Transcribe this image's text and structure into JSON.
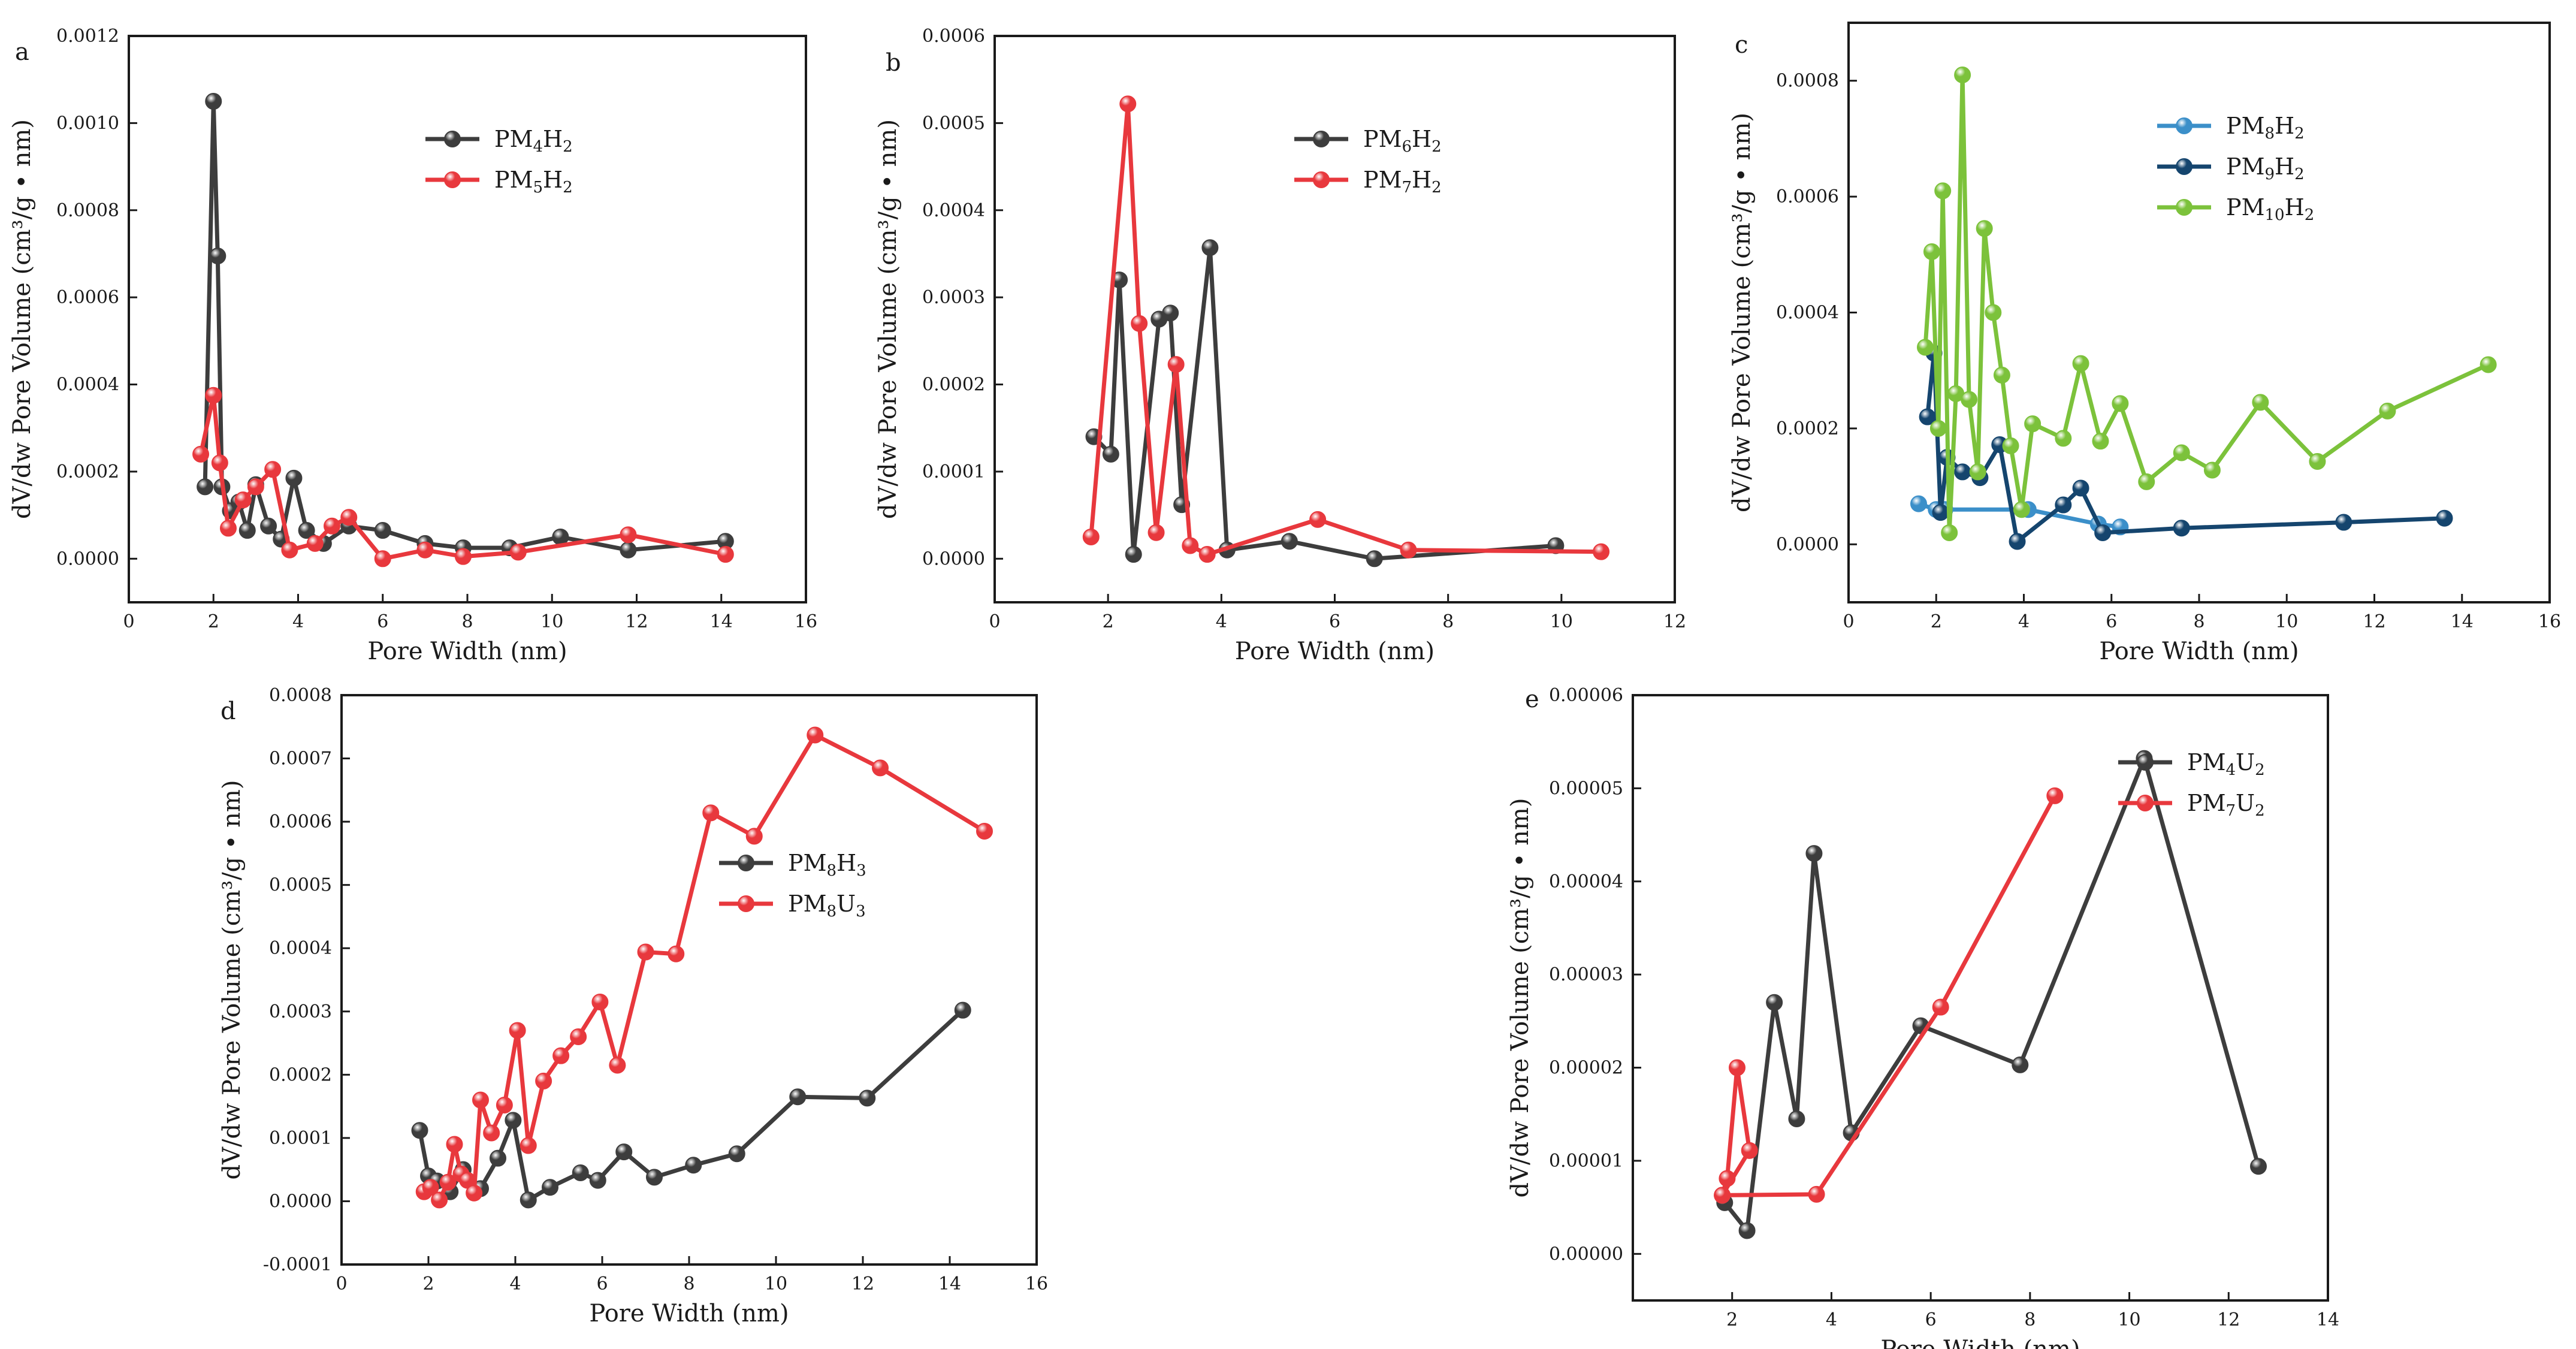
{
  "figure": {
    "colors": {
      "black": "#3d3d3d",
      "red": "#e8383d",
      "lightblue": "#3b8fc9",
      "navy": "#15456e",
      "green": "#7cc23b"
    }
  },
  "chart_data": [
    {
      "type": "line",
      "panel": "a",
      "xlabel": "Pore Width (nm)",
      "ylabel": "dV/dw Pore Volume (cm³/g • nm)",
      "xlim": [
        0,
        16
      ],
      "ylim": [
        -0.0001,
        0.0012
      ],
      "xticks": [
        0,
        2,
        4,
        6,
        8,
        10,
        12,
        14,
        16
      ],
      "xtick_labels": [
        "0",
        "2",
        "4",
        "6",
        "8",
        "10",
        "12",
        "14",
        "16"
      ],
      "yticks": [
        0,
        0.0002,
        0.0004,
        0.0006,
        0.0008,
        0.001,
        0.0012
      ],
      "ytick_labels": [
        "0.0000",
        "0.0002",
        "0.0004",
        "0.0006",
        "0.0008",
        "0.0010",
        "0.0012"
      ],
      "legend_position": "top-right",
      "series": [
        {
          "name": "PM4H2",
          "label": "PM",
          "sub1": "4",
          "mid": "H",
          "sub2": "2",
          "color": "#3d3d3d",
          "x": [
            1.8,
            2.0,
            2.1,
            2.2,
            2.4,
            2.6,
            2.8,
            3.0,
            3.3,
            3.6,
            3.9,
            4.2,
            4.6,
            5.2,
            6.0,
            7.0,
            7.9,
            9.0,
            10.2,
            11.8,
            14.1
          ],
          "y": [
            0.000165,
            0.00105,
            0.000695,
            0.000165,
            0.00011,
            0.00013,
            6.5e-05,
            0.00017,
            7.5e-05,
            4.5e-05,
            0.000185,
            6.5e-05,
            3.5e-05,
            7.5e-05,
            6.5e-05,
            3.5e-05,
            2.5e-05,
            2.5e-05,
            5e-05,
            2e-05,
            4e-05
          ]
        },
        {
          "name": "PM5H2",
          "label": "PM",
          "sub1": "5",
          "mid": "H",
          "sub2": "2",
          "color": "#e8383d",
          "x": [
            1.7,
            2.0,
            2.15,
            2.35,
            2.7,
            3.0,
            3.4,
            3.8,
            4.4,
            4.8,
            5.2,
            6.0,
            7.0,
            7.9,
            9.2,
            11.8,
            14.1
          ],
          "y": [
            0.00024,
            0.000375,
            0.00022,
            7e-05,
            0.000135,
            0.000165,
            0.000205,
            2e-05,
            3.5e-05,
            7.5e-05,
            9.5e-05,
            0.0,
            2e-05,
            5e-06,
            1.5e-05,
            5.5e-05,
            1e-05
          ]
        }
      ]
    },
    {
      "type": "line",
      "panel": "b",
      "xlabel": "Pore Width (nm)",
      "ylabel": "dV/dw Pore Volume (cm³/g • nm)",
      "xlim": [
        0,
        12
      ],
      "ylim": [
        -5e-05,
        0.0006
      ],
      "xticks": [
        0,
        2,
        4,
        6,
        8,
        10,
        12
      ],
      "xtick_labels": [
        "0",
        "2",
        "4",
        "6",
        "8",
        "10",
        "12"
      ],
      "yticks": [
        0,
        0.0001,
        0.0002,
        0.0003,
        0.0004,
        0.0005,
        0.0006
      ],
      "ytick_labels": [
        "0.0000",
        "0.0001",
        "0.0002",
        "0.0003",
        "0.0004",
        "0.0005",
        "0.0006"
      ],
      "legend_position": "top-right",
      "series": [
        {
          "name": "PM6H2",
          "label": "PM",
          "sub1": "6",
          "mid": "H",
          "sub2": "2",
          "color": "#3d3d3d",
          "x": [
            1.75,
            2.05,
            2.2,
            2.45,
            2.9,
            3.1,
            3.3,
            3.8,
            4.1,
            5.2,
            6.7,
            9.9
          ],
          "y": [
            0.00014,
            0.00012,
            0.00032,
            5e-06,
            0.000275,
            0.000282,
            6.2e-05,
            0.000357,
            1e-05,
            2e-05,
            0.0,
            1.5e-05
          ]
        },
        {
          "name": "PM7H2",
          "label": "PM",
          "sub1": "7",
          "mid": "H",
          "sub2": "2",
          "color": "#e8383d",
          "x": [
            1.7,
            2.35,
            2.55,
            2.85,
            3.2,
            3.45,
            3.75,
            5.7,
            7.3,
            10.7
          ],
          "y": [
            2.5e-05,
            0.000522,
            0.00027,
            3e-05,
            0.000223,
            1.5e-05,
            5e-06,
            4.5e-05,
            1e-05,
            8e-06
          ]
        }
      ]
    },
    {
      "type": "line",
      "panel": "c",
      "xlabel": "Pore Width (nm)",
      "ylabel": "dV/dw Pore Volume (cm³/g • nm)",
      "xlim": [
        0,
        16
      ],
      "ylim": [
        -0.0001,
        0.0009
      ],
      "xticks": [
        0,
        2,
        4,
        6,
        8,
        10,
        12,
        14,
        16
      ],
      "xtick_labels": [
        "0",
        "2",
        "4",
        "6",
        "8",
        "10",
        "12",
        "14",
        "16"
      ],
      "yticks": [
        0,
        0.0002,
        0.0004,
        0.0006,
        0.0008
      ],
      "ytick_labels": [
        "0.0000",
        "0.0002",
        "0.0004",
        "0.0006",
        "0.0008"
      ],
      "legend_position": "top-right",
      "series": [
        {
          "name": "PM8H2",
          "label": "PM",
          "sub1": "8",
          "mid": "H",
          "sub2": "2",
          "color": "#3b8fc9",
          "x": [
            1.6,
            2.0,
            2.2,
            4.1,
            5.7,
            6.2
          ],
          "y": [
            7e-05,
            6e-05,
            6e-05,
            6e-05,
            3.5e-05,
            3e-05
          ]
        },
        {
          "name": "PM9H2",
          "label": "PM",
          "sub1": "9",
          "mid": "H",
          "sub2": "2",
          "color": "#15456e",
          "x": [
            1.8,
            1.95,
            2.1,
            2.25,
            2.6,
            3.0,
            3.45,
            3.85,
            4.9,
            5.3,
            5.8,
            7.6,
            11.3,
            13.6
          ],
          "y": [
            0.00022,
            0.00033,
            5.5e-05,
            0.00015,
            0.000125,
            0.000115,
            0.000172,
            5e-06,
            6.8e-05,
            9.7e-05,
            2e-05,
            2.8e-05,
            3.8e-05,
            4.5e-05
          ]
        },
        {
          "name": "PM10H2",
          "label": "PM",
          "sub1": "10",
          "mid": "H",
          "sub2": "2",
          "color": "#7cc23b",
          "x": [
            1.75,
            1.9,
            2.05,
            2.15,
            2.3,
            2.45,
            2.6,
            2.75,
            2.95,
            3.1,
            3.3,
            3.5,
            3.7,
            3.95,
            4.2,
            4.9,
            5.3,
            5.75,
            6.2,
            6.8,
            7.6,
            8.3,
            9.4,
            10.7,
            12.3,
            14.6
          ],
          "y": [
            0.00034,
            0.000505,
            0.0002,
            0.00061,
            2e-05,
            0.00026,
            0.00081,
            0.00025,
            0.000125,
            0.000545,
            0.0004,
            0.000292,
            0.00017,
            6e-05,
            0.000208,
            0.000183,
            0.000312,
            0.000178,
            0.000243,
            0.000108,
            0.000158,
            0.000128,
            0.000245,
            0.000143,
            0.00023,
            0.00031
          ]
        }
      ]
    },
    {
      "type": "line",
      "panel": "d",
      "xlabel": "Pore Width (nm)",
      "ylabel": "dV/dw Pore Volume (cm³/g • nm)",
      "xlim": [
        0,
        16
      ],
      "ylim": [
        -0.0001,
        0.0008
      ],
      "xticks": [
        0,
        2,
        4,
        6,
        8,
        10,
        12,
        14,
        16
      ],
      "xtick_labels": [
        "0",
        "2",
        "4",
        "6",
        "8",
        "10",
        "12",
        "14",
        "16"
      ],
      "yticks": [
        -0.0001,
        0,
        0.0001,
        0.0002,
        0.0003,
        0.0004,
        0.0005,
        0.0006,
        0.0007,
        0.0008
      ],
      "ytick_labels": [
        "-0.0001",
        "0.0000",
        "0.0001",
        "0.0002",
        "0.0003",
        "0.0004",
        "0.0005",
        "0.0006",
        "0.0007",
        "0.0008"
      ],
      "legend_position": "center-right",
      "series": [
        {
          "name": "PM8H3",
          "label": "PM",
          "sub1": "8",
          "mid": "H",
          "sub2": "3",
          "color": "#3d3d3d",
          "x": [
            1.8,
            2.0,
            2.2,
            2.5,
            2.8,
            3.2,
            3.6,
            3.95,
            4.3,
            4.8,
            5.5,
            5.9,
            6.5,
            7.2,
            8.1,
            9.1,
            10.5,
            12.1,
            14.3
          ],
          "y": [
            0.000112,
            4e-05,
            3.2e-05,
            1.5e-05,
            5e-05,
            2e-05,
            6.8e-05,
            0.000128,
            2e-06,
            2.2e-05,
            4.5e-05,
            3.3e-05,
            7.8e-05,
            3.8e-05,
            5.7e-05,
            7.5e-05,
            0.000165,
            0.000163,
            0.000302
          ]
        },
        {
          "name": "PM8U3",
          "label": "PM",
          "sub1": "8",
          "mid": "U",
          "sub2": "3",
          "color": "#e8383d",
          "x": [
            1.9,
            2.05,
            2.25,
            2.45,
            2.6,
            2.75,
            2.9,
            3.05,
            3.2,
            3.45,
            3.75,
            4.05,
            4.3,
            4.65,
            5.05,
            5.45,
            5.95,
            6.35,
            7.0,
            7.7,
            8.5,
            9.5,
            10.9,
            12.4,
            14.8
          ],
          "y": [
            1.5e-05,
            2.2e-05,
            2e-06,
            3e-05,
            9e-05,
            4.3e-05,
            3.3e-05,
            1.3e-05,
            0.00016,
            0.000108,
            0.000152,
            0.00027,
            8.8e-05,
            0.00019,
            0.00023,
            0.00026,
            0.000315,
            0.000215,
            0.000394,
            0.000391,
            0.000614,
            0.000577,
            0.000737,
            0.000685,
            0.000585
          ]
        }
      ]
    },
    {
      "type": "line",
      "panel": "e",
      "xlabel": "Pore Width (nm)",
      "ylabel": "dV/dw Pore Volume (cm³/g • nm)",
      "xlim": [
        0,
        14
      ],
      "ylim": [
        -5e-06,
        6e-05
      ],
      "xticks": [
        2,
        4,
        6,
        8,
        10,
        12,
        14
      ],
      "xtick_labels": [
        "2",
        "4",
        "6",
        "8",
        "10",
        "12",
        "14"
      ],
      "yticks": [
        0,
        1e-05,
        2e-05,
        3e-05,
        4e-05,
        5e-05,
        6e-05
      ],
      "ytick_labels": [
        "0.00000",
        "0.00001",
        "0.00002",
        "0.00003",
        "0.00004",
        "0.00005",
        "0.00006"
      ],
      "legend_position": "top-right",
      "series": [
        {
          "name": "PM4U2",
          "label": "PM",
          "sub1": "4",
          "mid": "U",
          "sub2": "2",
          "color": "#3d3d3d",
          "x": [
            1.85,
            2.3,
            2.85,
            3.3,
            3.65,
            4.4,
            5.8,
            7.8,
            10.3,
            12.6
          ],
          "y": [
            5.5e-06,
            2.5e-06,
            2.7e-05,
            1.45e-05,
            4.3e-05,
            1.3e-05,
            2.45e-05,
            2.03e-05,
            5.32e-05,
            9.4e-06
          ]
        },
        {
          "name": "PM7U2",
          "label": "PM",
          "sub1": "7",
          "mid": "U",
          "sub2": "2",
          "color": "#e8383d",
          "x": [
            1.8,
            1.9,
            2.1,
            2.35,
            1.8,
            3.7,
            6.2,
            8.5
          ],
          "y": [
            6.3e-06,
            8.1e-06,
            2e-05,
            1.11e-05,
            6.3e-06,
            6.4e-06,
            2.65e-05,
            4.92e-05
          ]
        }
      ]
    }
  ]
}
